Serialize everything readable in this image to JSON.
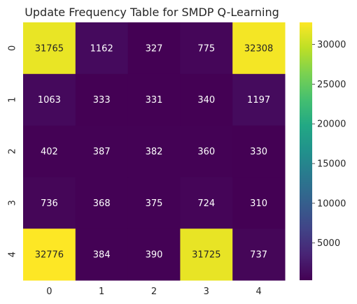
{
  "chart_data": {
    "type": "heatmap",
    "title": "Update Frequency Table for SMDP Q-Learning",
    "xlabel": "",
    "ylabel": "",
    "x_categories": [
      "0",
      "1",
      "2",
      "3",
      "4"
    ],
    "y_categories": [
      "0",
      "1",
      "2",
      "3",
      "4"
    ],
    "values": [
      [
        31765,
        1162,
        327,
        775,
        32308
      ],
      [
        1063,
        333,
        331,
        340,
        1197
      ],
      [
        402,
        387,
        382,
        360,
        330
      ],
      [
        736,
        368,
        375,
        724,
        310
      ],
      [
        32776,
        384,
        390,
        31725,
        737
      ]
    ],
    "colormap": "viridis",
    "colorbar": {
      "ticks": [
        5000,
        10000,
        15000,
        20000,
        25000,
        30000
      ],
      "tick_labels": [
        "5000",
        "10000",
        "15000",
        "20000",
        "25000",
        "30000"
      ]
    }
  }
}
